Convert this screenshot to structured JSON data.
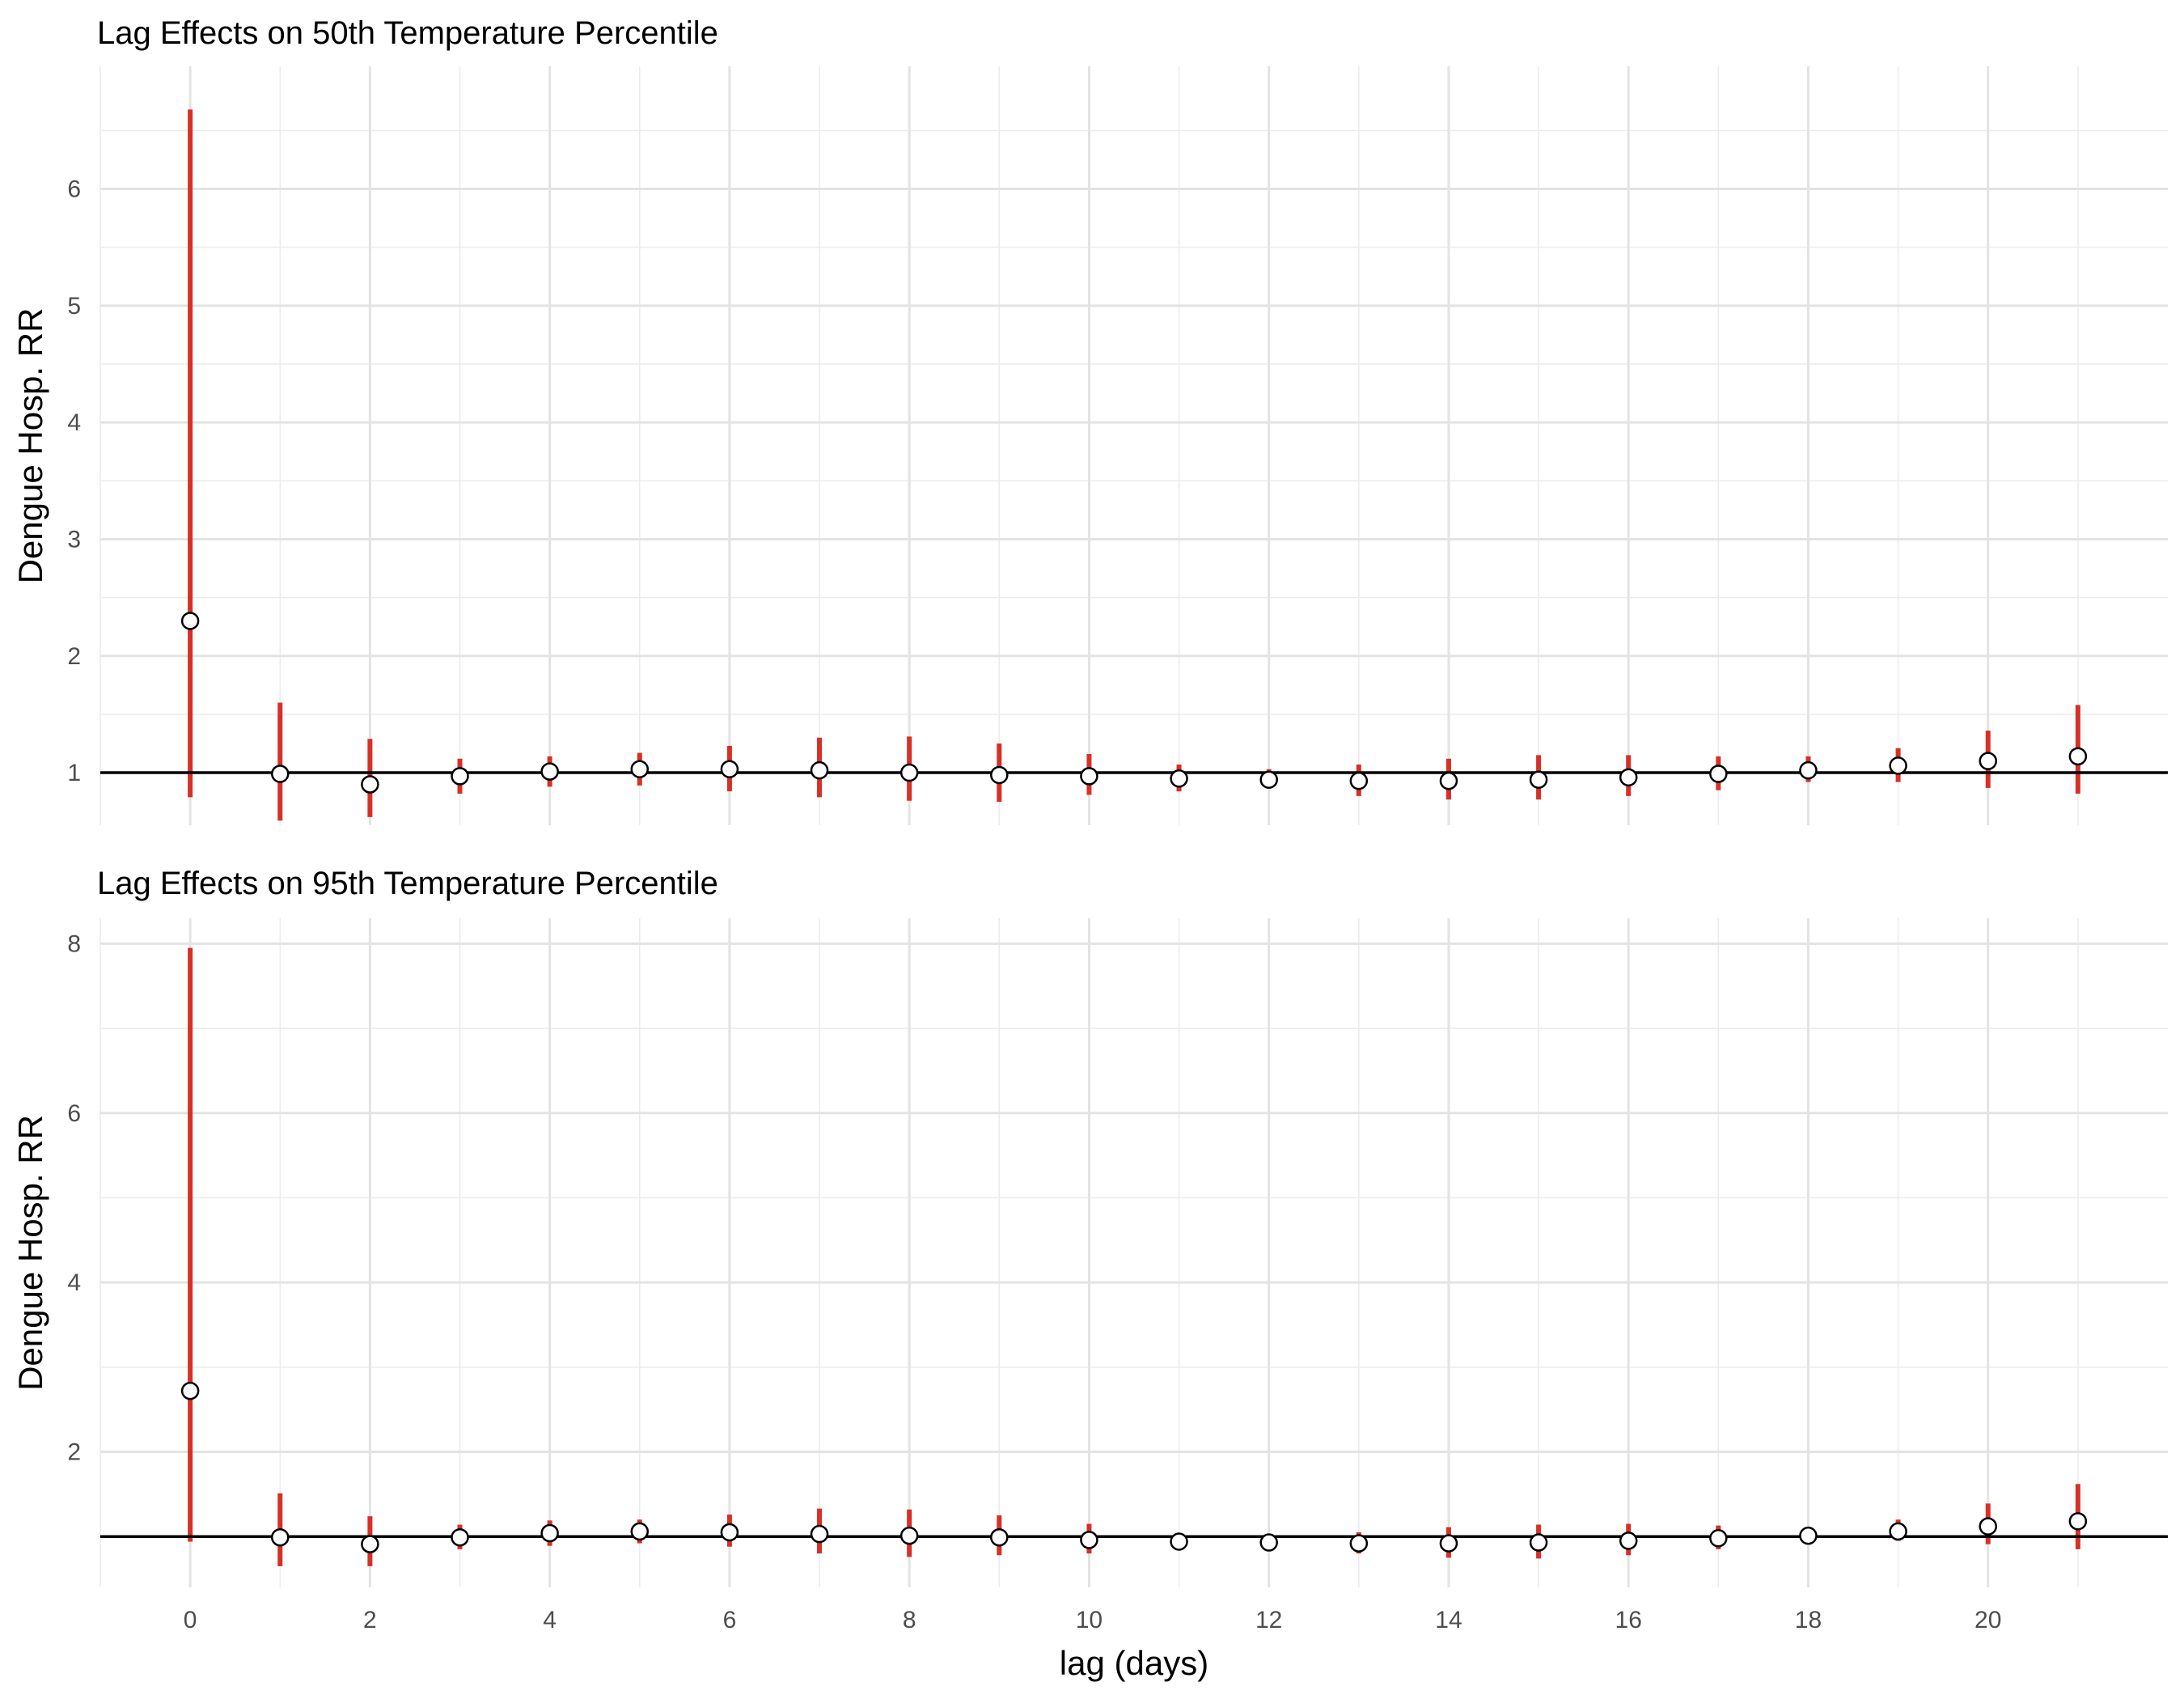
{
  "chart_data": [
    {
      "type": "scatter",
      "title": "Lag Effects on 50th Temperature Percentile",
      "xlabel": "",
      "ylabel": "Dengue Hosp. RR",
      "xlim": [
        -1,
        22
      ],
      "ylim": [
        0.55,
        7.05
      ],
      "y_ticks": [
        1,
        2,
        3,
        4,
        5,
        6
      ],
      "x_ticks": [
        0,
        2,
        4,
        6,
        8,
        10,
        12,
        14,
        16,
        18,
        20
      ],
      "reference_line": 1,
      "grid": true,
      "colors": {
        "interval": "#d73027",
        "point_fill": "#ffffff",
        "point_stroke": "#000000",
        "reference": "#000000"
      },
      "lag": [
        0,
        1,
        2,
        3,
        4,
        5,
        6,
        7,
        8,
        9,
        10,
        11,
        12,
        13,
        14,
        15,
        16,
        17,
        18,
        19,
        20,
        21
      ],
      "rr": [
        2.3,
        0.99,
        0.9,
        0.97,
        1.01,
        1.03,
        1.03,
        1.02,
        1.0,
        0.98,
        0.97,
        0.95,
        0.94,
        0.93,
        0.93,
        0.94,
        0.96,
        0.99,
        1.02,
        1.06,
        1.1,
        1.14
      ],
      "lower": [
        0.79,
        0.59,
        0.62,
        0.82,
        0.88,
        0.89,
        0.84,
        0.79,
        0.76,
        0.75,
        0.81,
        0.84,
        0.88,
        0.8,
        0.77,
        0.77,
        0.8,
        0.85,
        0.92,
        0.92,
        0.87,
        0.82
      ],
      "upper": [
        6.68,
        1.6,
        1.29,
        1.12,
        1.14,
        1.17,
        1.23,
        1.3,
        1.31,
        1.25,
        1.16,
        1.07,
        1.03,
        1.07,
        1.12,
        1.15,
        1.15,
        1.14,
        1.14,
        1.21,
        1.36,
        1.58
      ]
    },
    {
      "type": "scatter",
      "title": "Lag Effects on 95th Temperature Percentile",
      "xlabel": "lag (days)",
      "ylabel": "Dengue Hosp. RR",
      "xlim": [
        -1,
        22
      ],
      "ylim": [
        0.4,
        8.3
      ],
      "y_ticks": [
        2,
        4,
        6,
        8
      ],
      "x_ticks": [
        0,
        2,
        4,
        6,
        8,
        10,
        12,
        14,
        16,
        18,
        20
      ],
      "reference_line": 1,
      "grid": true,
      "colors": {
        "interval": "#d73027",
        "point_fill": "#ffffff",
        "point_stroke": "#000000",
        "reference": "#000000"
      },
      "lag": [
        0,
        1,
        2,
        3,
        4,
        5,
        6,
        7,
        8,
        9,
        10,
        11,
        12,
        13,
        14,
        15,
        16,
        17,
        18,
        19,
        20,
        21
      ],
      "rr": [
        2.72,
        0.99,
        0.91,
        0.99,
        1.04,
        1.06,
        1.05,
        1.03,
        1.01,
        0.99,
        0.96,
        0.94,
        0.93,
        0.92,
        0.92,
        0.93,
        0.95,
        0.98,
        1.01,
        1.06,
        1.12,
        1.18
      ],
      "lower": [
        0.94,
        0.65,
        0.65,
        0.85,
        0.89,
        0.92,
        0.88,
        0.8,
        0.76,
        0.78,
        0.8,
        0.88,
        0.9,
        0.8,
        0.75,
        0.74,
        0.78,
        0.85,
        0.95,
        0.95,
        0.91,
        0.85
      ],
      "upper": [
        7.95,
        1.51,
        1.24,
        1.14,
        1.19,
        1.2,
        1.26,
        1.33,
        1.32,
        1.25,
        1.15,
        1.02,
        0.96,
        1.05,
        1.11,
        1.14,
        1.15,
        1.13,
        1.09,
        1.2,
        1.39,
        1.62
      ]
    }
  ]
}
